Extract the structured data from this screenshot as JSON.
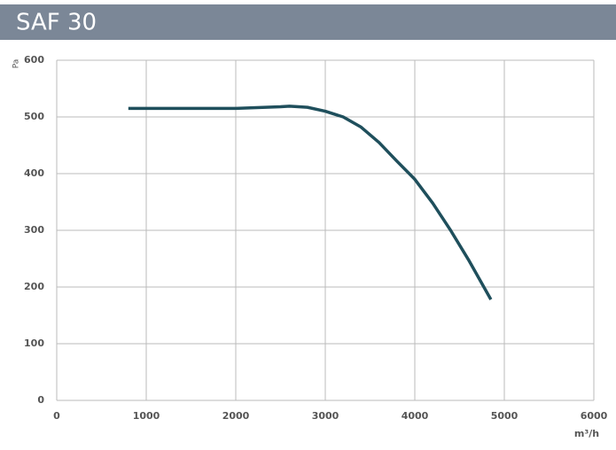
{
  "chart_data": {
    "type": "line",
    "title": "SAF 30",
    "y_label": "Pa",
    "x_label": "m³/h",
    "x": [
      800,
      1000,
      2000,
      2500,
      2600,
      2800,
      3000,
      3200,
      3400,
      3600,
      3800,
      4000,
      4200,
      4400,
      4600,
      4850
    ],
    "series": [
      {
        "color": "#1f4f5c",
        "values": [
          515,
          515,
          515,
          518,
          519,
          517,
          510,
          500,
          482,
          455,
          422,
          390,
          348,
          300,
          248,
          178
        ]
      }
    ],
    "xlim": [
      0,
      6000
    ],
    "xticks": [
      0,
      1000,
      2000,
      3000,
      4000,
      5000,
      6000
    ],
    "ylim": [
      0,
      600
    ],
    "yticks": [
      0,
      100,
      200,
      300,
      400,
      500,
      600
    ],
    "grid": true
  }
}
